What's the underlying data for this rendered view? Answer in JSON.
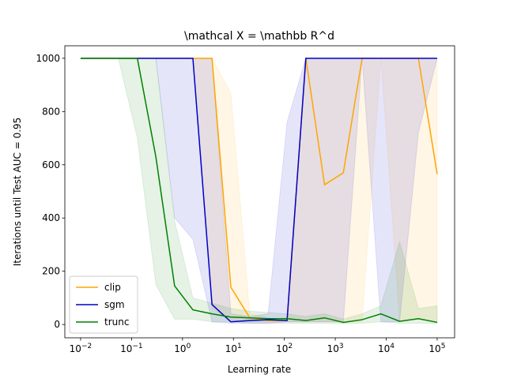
{
  "chart_data": {
    "type": "line",
    "title": "\\mathcal X = \\mathbb R^d",
    "x_label": "Learning rate",
    "y_label": "Iterations until Test AUC = 0.95",
    "x": [
      0.01,
      0.023,
      0.055,
      0.13,
      0.3,
      0.7,
      1.6,
      3.8,
      8.9,
      21,
      48,
      113,
      264,
      616,
      1438,
      3360,
      7848,
      18330,
      42813,
      100000
    ],
    "x_scale": "log",
    "series": [
      {
        "name": "clip",
        "color": "orange",
        "values": [
          1000,
          1000,
          1000,
          1000,
          1000,
          1000,
          1000,
          1000,
          140,
          25,
          15,
          15,
          1000,
          525,
          570,
          1000,
          1000,
          1000,
          1000,
          565
        ],
        "upper": [
          1000,
          1000,
          1000,
          1000,
          1000,
          1000,
          1000,
          1000,
          870,
          40,
          25,
          20,
          1000,
          1000,
          1000,
          1000,
          1000,
          1000,
          1000,
          1000
        ],
        "lower": [
          1000,
          1000,
          1000,
          1000,
          1000,
          1000,
          1000,
          60,
          15,
          10,
          10,
          10,
          10,
          10,
          10,
          10,
          1000,
          10,
          20,
          10
        ]
      },
      {
        "name": "sgm",
        "color": "#0000cc",
        "values": [
          1000,
          1000,
          1000,
          1000,
          1000,
          1000,
          1000,
          75,
          10,
          15,
          18,
          15,
          1000,
          1000,
          1000,
          1000,
          1000,
          1000,
          1000,
          1000
        ],
        "upper": [
          1000,
          1000,
          1000,
          1000,
          1000,
          1000,
          1000,
          1000,
          40,
          30,
          40,
          760,
          1000,
          1000,
          1000,
          1000,
          1000,
          1000,
          1000,
          1000
        ],
        "lower": [
          1000,
          1000,
          1000,
          1000,
          1000,
          400,
          320,
          10,
          5,
          5,
          5,
          10,
          10,
          10,
          10,
          1000,
          10,
          10,
          720,
          1000
        ]
      },
      {
        "name": "trunc",
        "color": "green",
        "values": [
          1000,
          1000,
          1000,
          1000,
          630,
          145,
          55,
          40,
          28,
          25,
          22,
          22,
          15,
          25,
          8,
          18,
          40,
          12,
          22,
          8
        ],
        "upper": [
          1000,
          1000,
          1000,
          1000,
          1000,
          390,
          100,
          80,
          60,
          50,
          45,
          40,
          30,
          40,
          20,
          40,
          70,
          310,
          60,
          70
        ],
        "lower": [
          1000,
          1000,
          1000,
          700,
          150,
          20,
          20,
          10,
          10,
          5,
          5,
          5,
          5,
          5,
          3,
          5,
          10,
          5,
          5,
          3
        ]
      }
    ],
    "xlim": [
      0.0049,
      220000
    ],
    "xticks": [
      {
        "value": 0.01,
        "label": "10−2"
      },
      {
        "value": 0.1,
        "label": "10−1"
      },
      {
        "value": 1,
        "label": "100"
      },
      {
        "value": 10,
        "label": "101"
      },
      {
        "value": 100,
        "label": "102"
      },
      {
        "value": 1000,
        "label": "103"
      },
      {
        "value": 10000,
        "label": "104"
      },
      {
        "value": 100000,
        "label": "105"
      }
    ],
    "ylim": [
      -50,
      1047
    ],
    "yticks": [
      0,
      200,
      400,
      600,
      800,
      1000
    ],
    "band_opacity": 0.1,
    "legend": "lower left"
  }
}
